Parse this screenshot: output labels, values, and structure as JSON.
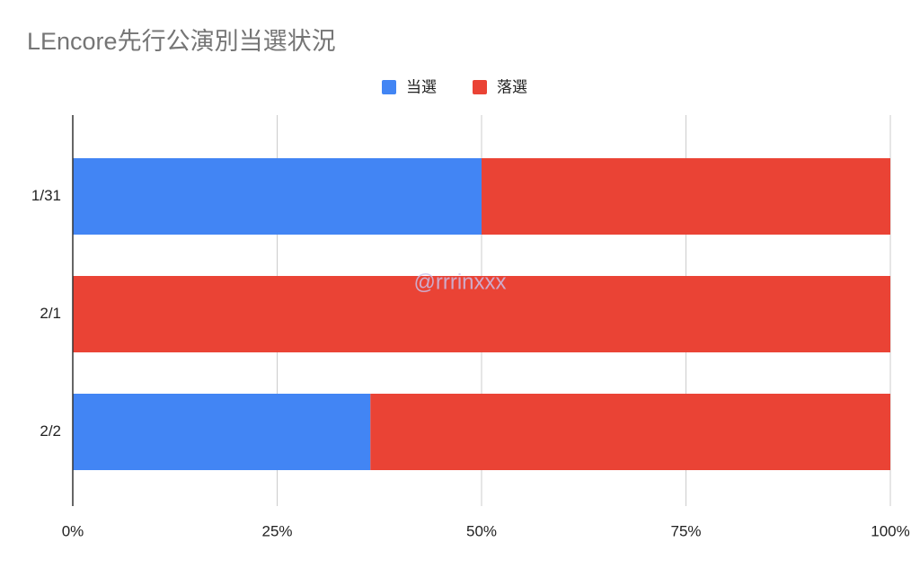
{
  "chart_data": {
    "type": "bar",
    "orientation": "horizontal",
    "stacked": true,
    "title": "LEncore先行公演別当選状況",
    "categories": [
      "1/31",
      "2/1",
      "2/2"
    ],
    "series": [
      {
        "name": "当選",
        "color": "#4285f4",
        "values": [
          50,
          0,
          36.4
        ]
      },
      {
        "name": "落選",
        "color": "#ea4335",
        "values": [
          50,
          100,
          63.6
        ]
      }
    ],
    "xlim": [
      0,
      100
    ],
    "xticks": [
      {
        "value": 0,
        "label": "0%"
      },
      {
        "value": 25,
        "label": "25%"
      },
      {
        "value": 50,
        "label": "50%"
      },
      {
        "value": 75,
        "label": "75%"
      },
      {
        "value": 100,
        "label": "100%"
      }
    ],
    "grid": true,
    "legend": "top",
    "watermark": "@rrrinxxx"
  }
}
